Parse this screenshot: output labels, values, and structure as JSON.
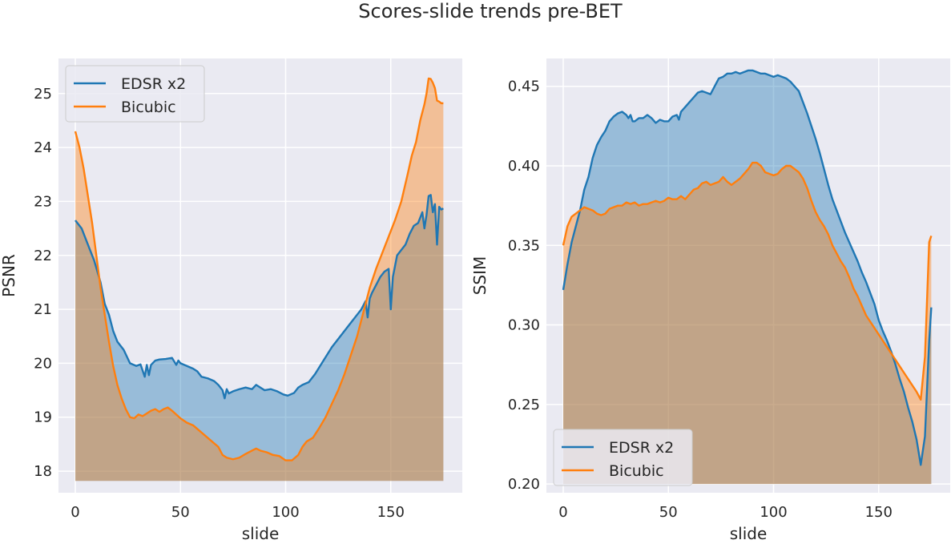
{
  "figure": {
    "title": "Scores-slide trends pre-BET"
  },
  "colors": {
    "edsr": "#1f77b4",
    "bicubic": "#ff7f0e",
    "panel": "#eaeaf2"
  },
  "chart_data": [
    {
      "type": "area",
      "xlabel": "slide",
      "ylabel": "PSNR",
      "xlim": [
        -8,
        184
      ],
      "ylim": [
        17.6,
        25.65
      ],
      "xticks": [
        0,
        50,
        100,
        150
      ],
      "yticks": [
        18,
        19,
        20,
        21,
        22,
        23,
        24,
        25
      ],
      "baseline": 17.82,
      "legend": "top-left",
      "series": [
        {
          "name": "EDSR x2",
          "x": [
            0,
            3,
            6,
            9,
            12,
            14,
            16,
            18,
            20,
            23,
            26,
            29,
            31,
            33,
            34,
            35,
            36,
            38,
            40,
            43,
            46,
            48,
            49,
            50,
            53,
            56,
            58,
            60,
            63,
            66,
            68,
            70,
            71,
            72,
            73,
            75,
            78,
            81,
            84,
            86,
            88,
            90,
            93,
            96,
            99,
            101,
            104,
            106,
            108,
            111,
            114,
            118,
            122,
            125,
            128,
            131,
            134,
            136,
            138,
            139,
            140,
            141,
            143,
            145,
            147,
            149,
            150,
            151,
            152,
            153,
            155,
            157,
            159,
            161,
            163,
            165,
            166,
            167,
            168,
            169,
            170,
            171,
            172,
            173,
            174,
            175
          ],
          "y": [
            22.65,
            22.5,
            22.2,
            21.9,
            21.5,
            21.1,
            20.9,
            20.6,
            20.4,
            20.25,
            20.0,
            19.95,
            19.98,
            19.75,
            19.97,
            19.78,
            19.97,
            20.05,
            20.07,
            20.08,
            20.1,
            19.97,
            20.05,
            20.0,
            19.95,
            19.9,
            19.85,
            19.75,
            19.72,
            19.67,
            19.6,
            19.5,
            19.35,
            19.52,
            19.44,
            19.48,
            19.52,
            19.55,
            19.52,
            19.6,
            19.55,
            19.5,
            19.52,
            19.48,
            19.42,
            19.4,
            19.45,
            19.55,
            19.6,
            19.65,
            19.8,
            20.05,
            20.3,
            20.45,
            20.6,
            20.75,
            20.9,
            21.0,
            21.15,
            20.85,
            21.2,
            21.3,
            21.45,
            21.6,
            21.7,
            21.75,
            21.0,
            21.6,
            21.8,
            22.0,
            22.1,
            22.2,
            22.4,
            22.55,
            22.6,
            22.8,
            22.5,
            22.75,
            23.1,
            23.12,
            22.8,
            22.95,
            22.2,
            22.9,
            22.85,
            22.87
          ]
        },
        {
          "name": "Bicubic",
          "x": [
            0,
            2,
            4,
            6,
            8,
            10,
            12,
            14,
            16,
            18,
            20,
            22,
            24,
            26,
            28,
            30,
            32,
            34,
            36,
            38,
            40,
            42,
            44,
            46,
            48,
            50,
            53,
            56,
            59,
            62,
            65,
            68,
            70,
            72,
            75,
            78,
            81,
            84,
            86,
            88,
            91,
            94,
            97,
            100,
            103,
            106,
            108,
            110,
            113,
            116,
            119,
            122,
            125,
            128,
            131,
            134,
            137,
            140,
            143,
            146,
            149,
            152,
            155,
            158,
            160,
            162,
            164,
            166,
            167,
            168,
            169,
            170,
            171,
            172,
            173,
            174,
            175
          ],
          "y": [
            24.3,
            24.0,
            23.6,
            23.1,
            22.6,
            22.0,
            21.4,
            20.9,
            20.4,
            19.95,
            19.6,
            19.35,
            19.15,
            19.0,
            18.98,
            19.05,
            19.02,
            19.07,
            19.12,
            19.15,
            19.1,
            19.15,
            19.18,
            19.12,
            19.05,
            18.98,
            18.9,
            18.85,
            18.75,
            18.65,
            18.55,
            18.45,
            18.3,
            18.25,
            18.22,
            18.25,
            18.32,
            18.38,
            18.42,
            18.38,
            18.35,
            18.3,
            18.28,
            18.2,
            18.2,
            18.3,
            18.45,
            18.55,
            18.62,
            18.8,
            19.0,
            19.25,
            19.5,
            19.8,
            20.15,
            20.5,
            20.95,
            21.4,
            21.75,
            22.05,
            22.35,
            22.65,
            23.0,
            23.5,
            23.85,
            24.1,
            24.5,
            24.8,
            25.0,
            25.28,
            25.27,
            25.2,
            25.1,
            24.87,
            24.85,
            24.82,
            24.82
          ]
        }
      ]
    },
    {
      "type": "area",
      "xlabel": "slide",
      "ylabel": "SSIM",
      "xlim": [
        -8,
        184
      ],
      "ylim": [
        0.1945,
        0.4675
      ],
      "xticks": [
        0,
        50,
        100,
        150
      ],
      "yticks": [
        0.2,
        0.25,
        0.3,
        0.35,
        0.4,
        0.45
      ],
      "ytick_labels": [
        "0.20",
        "0.25",
        "0.30",
        "0.35",
        "0.40",
        "0.45"
      ],
      "baseline": 0.2,
      "legend": "bottom-left",
      "series": [
        {
          "name": "EDSR x2",
          "x": [
            0,
            2,
            4,
            6,
            8,
            10,
            12,
            14,
            16,
            18,
            20,
            22,
            24,
            26,
            28,
            30,
            31,
            32,
            33,
            34,
            36,
            38,
            40,
            42,
            44,
            46,
            48,
            50,
            52,
            54,
            55,
            56,
            58,
            60,
            62,
            64,
            66,
            68,
            70,
            72,
            74,
            76,
            78,
            80,
            82,
            84,
            86,
            88,
            90,
            92,
            94,
            96,
            98,
            100,
            102,
            104,
            106,
            108,
            110,
            112,
            114,
            116,
            118,
            120,
            122,
            124,
            126,
            128,
            130,
            132,
            134,
            136,
            138,
            140,
            142,
            144,
            146,
            148,
            150,
            152,
            154,
            156,
            158,
            160,
            162,
            164,
            166,
            168,
            170,
            172,
            174,
            175
          ],
          "y": [
            0.322,
            0.338,
            0.352,
            0.362,
            0.372,
            0.385,
            0.393,
            0.405,
            0.413,
            0.418,
            0.422,
            0.428,
            0.431,
            0.433,
            0.434,
            0.432,
            0.43,
            0.432,
            0.428,
            0.428,
            0.43,
            0.43,
            0.432,
            0.43,
            0.427,
            0.429,
            0.428,
            0.428,
            0.431,
            0.432,
            0.429,
            0.434,
            0.437,
            0.44,
            0.443,
            0.446,
            0.447,
            0.446,
            0.445,
            0.45,
            0.455,
            0.456,
            0.458,
            0.458,
            0.459,
            0.458,
            0.459,
            0.46,
            0.46,
            0.459,
            0.458,
            0.458,
            0.457,
            0.456,
            0.457,
            0.456,
            0.455,
            0.453,
            0.45,
            0.447,
            0.44,
            0.433,
            0.425,
            0.417,
            0.408,
            0.398,
            0.388,
            0.379,
            0.372,
            0.365,
            0.358,
            0.352,
            0.346,
            0.34,
            0.333,
            0.327,
            0.32,
            0.313,
            0.303,
            0.296,
            0.29,
            0.283,
            0.275,
            0.266,
            0.258,
            0.248,
            0.239,
            0.228,
            0.212,
            0.23,
            0.29,
            0.311
          ]
        },
        {
          "name": "Bicubic",
          "x": [
            0,
            2,
            4,
            6,
            8,
            10,
            12,
            14,
            16,
            18,
            20,
            22,
            24,
            26,
            28,
            30,
            32,
            34,
            36,
            38,
            40,
            42,
            44,
            46,
            48,
            50,
            52,
            54,
            56,
            58,
            60,
            62,
            64,
            66,
            68,
            70,
            72,
            74,
            76,
            78,
            80,
            82,
            84,
            86,
            88,
            90,
            92,
            94,
            96,
            98,
            100,
            102,
            104,
            106,
            108,
            110,
            112,
            114,
            116,
            118,
            120,
            122,
            124,
            126,
            128,
            130,
            132,
            134,
            136,
            138,
            140,
            142,
            144,
            146,
            148,
            150,
            152,
            154,
            156,
            158,
            160,
            162,
            164,
            166,
            168,
            170,
            172,
            174,
            175
          ],
          "y": [
            0.35,
            0.362,
            0.368,
            0.37,
            0.372,
            0.374,
            0.373,
            0.372,
            0.37,
            0.369,
            0.37,
            0.373,
            0.374,
            0.375,
            0.375,
            0.377,
            0.376,
            0.377,
            0.375,
            0.376,
            0.376,
            0.377,
            0.378,
            0.377,
            0.378,
            0.38,
            0.379,
            0.379,
            0.381,
            0.379,
            0.382,
            0.385,
            0.386,
            0.389,
            0.39,
            0.388,
            0.389,
            0.39,
            0.393,
            0.39,
            0.388,
            0.39,
            0.392,
            0.395,
            0.398,
            0.402,
            0.402,
            0.4,
            0.396,
            0.395,
            0.394,
            0.395,
            0.398,
            0.4,
            0.4,
            0.398,
            0.396,
            0.392,
            0.386,
            0.378,
            0.371,
            0.366,
            0.362,
            0.357,
            0.35,
            0.345,
            0.34,
            0.336,
            0.33,
            0.323,
            0.318,
            0.312,
            0.306,
            0.302,
            0.298,
            0.294,
            0.29,
            0.286,
            0.282,
            0.278,
            0.274,
            0.27,
            0.266,
            0.262,
            0.258,
            0.253,
            0.28,
            0.352,
            0.356
          ]
        }
      ]
    }
  ]
}
